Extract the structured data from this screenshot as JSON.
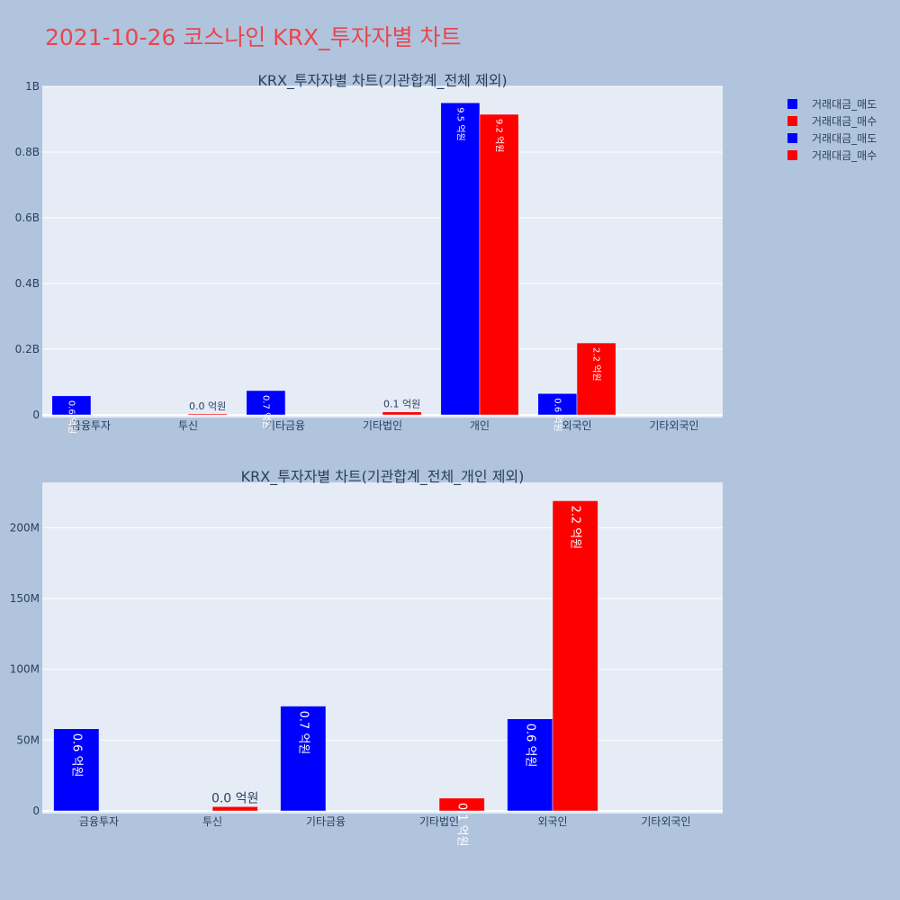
{
  "page": {
    "title": "2021-10-26 코스나인 KRX_투자자별 차트"
  },
  "legend": [
    {
      "label": "거래대금_매도",
      "color": "#0000ff"
    },
    {
      "label": "거래대금_매수",
      "color": "#ff0000"
    },
    {
      "label": "거래대금_매도",
      "color": "#0000ff"
    },
    {
      "label": "거래대금_매수",
      "color": "#ff0000"
    }
  ],
  "colors": {
    "sell": "#0000ff",
    "buy": "#ff0000",
    "plot_bg": "#e5ecf6",
    "page_bg": "#b0c4de",
    "title": "#e8474c"
  },
  "chart_data": [
    {
      "type": "bar",
      "title": "KRX_투자자별 차트(기관합계_전체 제외)",
      "categories": [
        "금융투자",
        "투신",
        "기타금융",
        "기타법인",
        "개인",
        "외국인",
        "기타외국인"
      ],
      "ylim": [
        0,
        1000000000
      ],
      "yticks": [
        0,
        200000000,
        400000000,
        600000000,
        800000000,
        1000000000
      ],
      "ytick_labels": [
        "0",
        "0.2B",
        "0.4B",
        "0.6B",
        "0.8B",
        "1B"
      ],
      "series": [
        {
          "name": "거래대금_매도",
          "color": "#0000ff",
          "values": [
            58000000,
            0,
            74000000,
            0,
            950000000,
            65000000,
            0
          ],
          "labels": [
            "0.6 억원",
            "",
            "0.7 억원",
            "",
            "9.5 억원",
            "0.6 억원",
            ""
          ]
        },
        {
          "name": "거래대금_매수",
          "color": "#ff0000",
          "values": [
            0,
            3000000,
            0,
            9000000,
            915000000,
            219000000,
            0
          ],
          "labels": [
            "",
            "0.0 억원",
            "",
            "0.1 억원",
            "9.2 억원",
            "2.2 억원",
            ""
          ]
        }
      ]
    },
    {
      "type": "bar",
      "title": "KRX_투자자별 차트(기관합계_전체_개인 제외)",
      "categories": [
        "금융투자",
        "투신",
        "기타금융",
        "기타법인",
        "외국인",
        "기타외국인"
      ],
      "ylim": [
        0,
        232000000
      ],
      "yticks": [
        0,
        50000000,
        100000000,
        150000000,
        200000000
      ],
      "ytick_labels": [
        "0",
        "50M",
        "100M",
        "150M",
        "200M"
      ],
      "series": [
        {
          "name": "거래대금_매도",
          "color": "#0000ff",
          "values": [
            58000000,
            0,
            74000000,
            0,
            65000000,
            0
          ],
          "labels": [
            "0.6 억원",
            "",
            "0.7 억원",
            "",
            "0.6 억원",
            ""
          ]
        },
        {
          "name": "거래대금_매수",
          "color": "#ff0000",
          "values": [
            0,
            3000000,
            0,
            9000000,
            219000000,
            0
          ],
          "labels": [
            "",
            "0.0 억원",
            "",
            "0.1 억원",
            "2.2 억원",
            ""
          ]
        }
      ]
    }
  ]
}
